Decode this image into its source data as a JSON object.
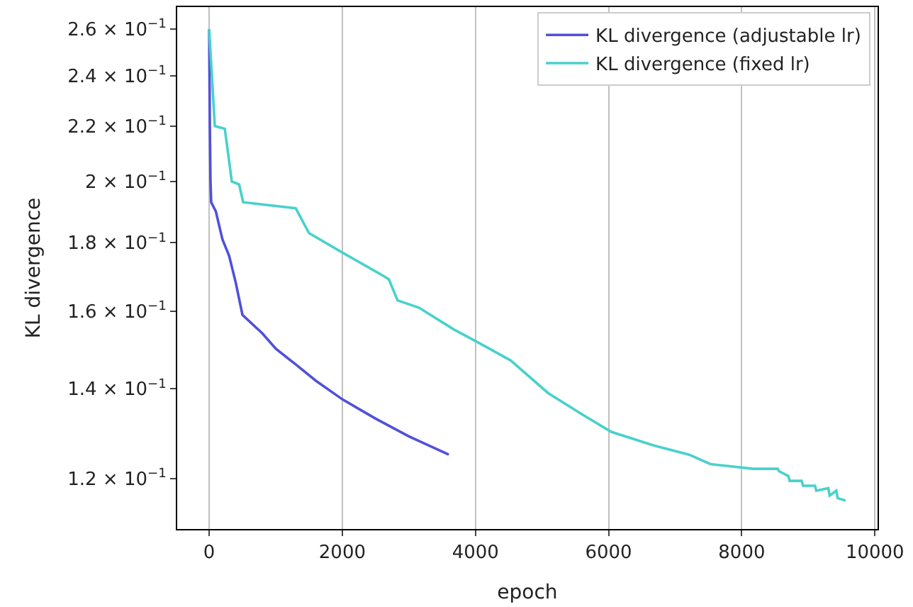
{
  "chart_data": {
    "type": "line",
    "xlabel": "epoch",
    "ylabel": "KL divergence",
    "log": "y",
    "grid": "x",
    "legend": "top right",
    "line_style": "solid",
    "marker": "none",
    "xlim": [
      -480,
      10040
    ],
    "xticks": [
      0,
      2000,
      4000,
      6000,
      8000,
      10000
    ],
    "ylim": [
      0.11,
      0.27
    ],
    "yticks": [
      {
        "value": 0.12,
        "label": "1.2 × 10$^{−1}$"
      },
      {
        "value": 0.14,
        "label": "1.4 × 10$^{−1}$"
      },
      {
        "value": 0.16,
        "label": "1.6 × 10$^{−1}$"
      },
      {
        "value": 0.18,
        "label": "1.8 × 10$^{−1}$"
      },
      {
        "value": 0.2,
        "label": "2 × 10$^{−1}$"
      },
      {
        "value": 0.22,
        "label": "2.2 × 10$^{−1}$"
      },
      {
        "value": 0.24,
        "label": "2.4 × 10$^{−1}$"
      },
      {
        "value": 0.26,
        "label": "2.6 × 10$^{−1}$"
      }
    ],
    "series": [
      {
        "name": "KL divergence (adjustable lr)",
        "color": "#5050dc",
        "x": [
          0,
          10,
          20,
          30,
          100,
          200,
          300,
          400,
          500,
          800,
          1000,
          1300,
          1600,
          2000,
          2500,
          3000,
          3600
        ],
        "values": [
          0.26,
          0.22,
          0.2,
          0.193,
          0.19,
          0.181,
          0.176,
          0.168,
          0.159,
          0.154,
          0.15,
          0.146,
          0.142,
          0.1375,
          0.133,
          0.129,
          0.125
        ]
      },
      {
        "name": "KL divergence (fixed lr)",
        "color": "#48d1cc",
        "x": [
          0,
          85,
          235,
          340,
          450,
          510,
          1300,
          1500,
          2000,
          2620,
          2700,
          2830,
          3150,
          3680,
          4000,
          4530,
          5090,
          5600,
          6040,
          6680,
          7210,
          7530,
          8170,
          8540,
          8560,
          8700,
          8720,
          8900,
          8920,
          9100,
          9120,
          9300,
          9320,
          9420,
          9440,
          9560
        ],
        "values": [
          0.26,
          0.22,
          0.219,
          0.2,
          0.199,
          0.193,
          0.191,
          0.183,
          0.177,
          0.17,
          0.169,
          0.163,
          0.161,
          0.155,
          0.152,
          0.147,
          0.139,
          0.134,
          0.13,
          0.127,
          0.125,
          0.123,
          0.122,
          0.122,
          0.1215,
          0.1205,
          0.1195,
          0.1195,
          0.1185,
          0.1185,
          0.1175,
          0.118,
          0.1165,
          0.1175,
          0.116,
          0.1155
        ]
      }
    ]
  }
}
